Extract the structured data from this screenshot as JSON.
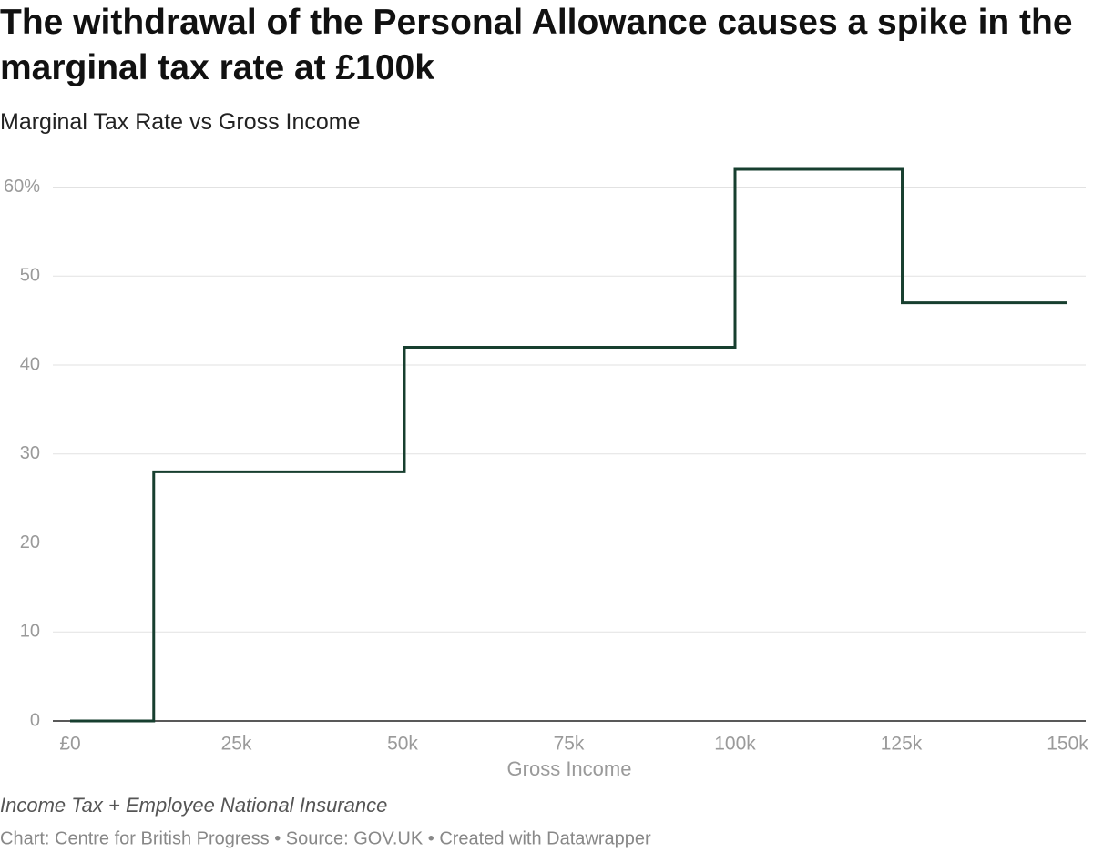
{
  "chart_data": {
    "type": "line",
    "title": "The withdrawal of the Personal Allowance causes a spike in the marginal tax rate at £100k",
    "subtitle": "Marginal Tax Rate vs Gross Income",
    "x_label": "Gross Income",
    "note": "Income Tax + Employee National Insurance",
    "credit": "Chart: Centre for British Progress • Source: GOV.UK • Created with Datawrapper",
    "x": [
      0,
      12570,
      12570,
      50270,
      50270,
      100000,
      100000,
      125140,
      125140,
      150000
    ],
    "series": [
      {
        "name": "Marginal tax rate",
        "color": "#173f2f",
        "values": [
          0,
          0,
          28,
          28,
          42,
          42,
          62,
          62,
          47,
          47
        ]
      }
    ],
    "xlim": [
      0,
      150000
    ],
    "xticks": [
      {
        "value": 0,
        "label": "£0"
      },
      {
        "value": 25000,
        "label": "25k"
      },
      {
        "value": 50000,
        "label": "50k"
      },
      {
        "value": 75000,
        "label": "75k"
      },
      {
        "value": 100000,
        "label": "100k"
      },
      {
        "value": 125000,
        "label": "125k"
      },
      {
        "value": 150000,
        "label": "150k"
      }
    ],
    "ylim": [
      0,
      62
    ],
    "yticks": [
      0,
      10,
      20,
      30,
      40,
      50,
      {
        "value": 60,
        "label": "60%"
      }
    ],
    "grid": true
  }
}
